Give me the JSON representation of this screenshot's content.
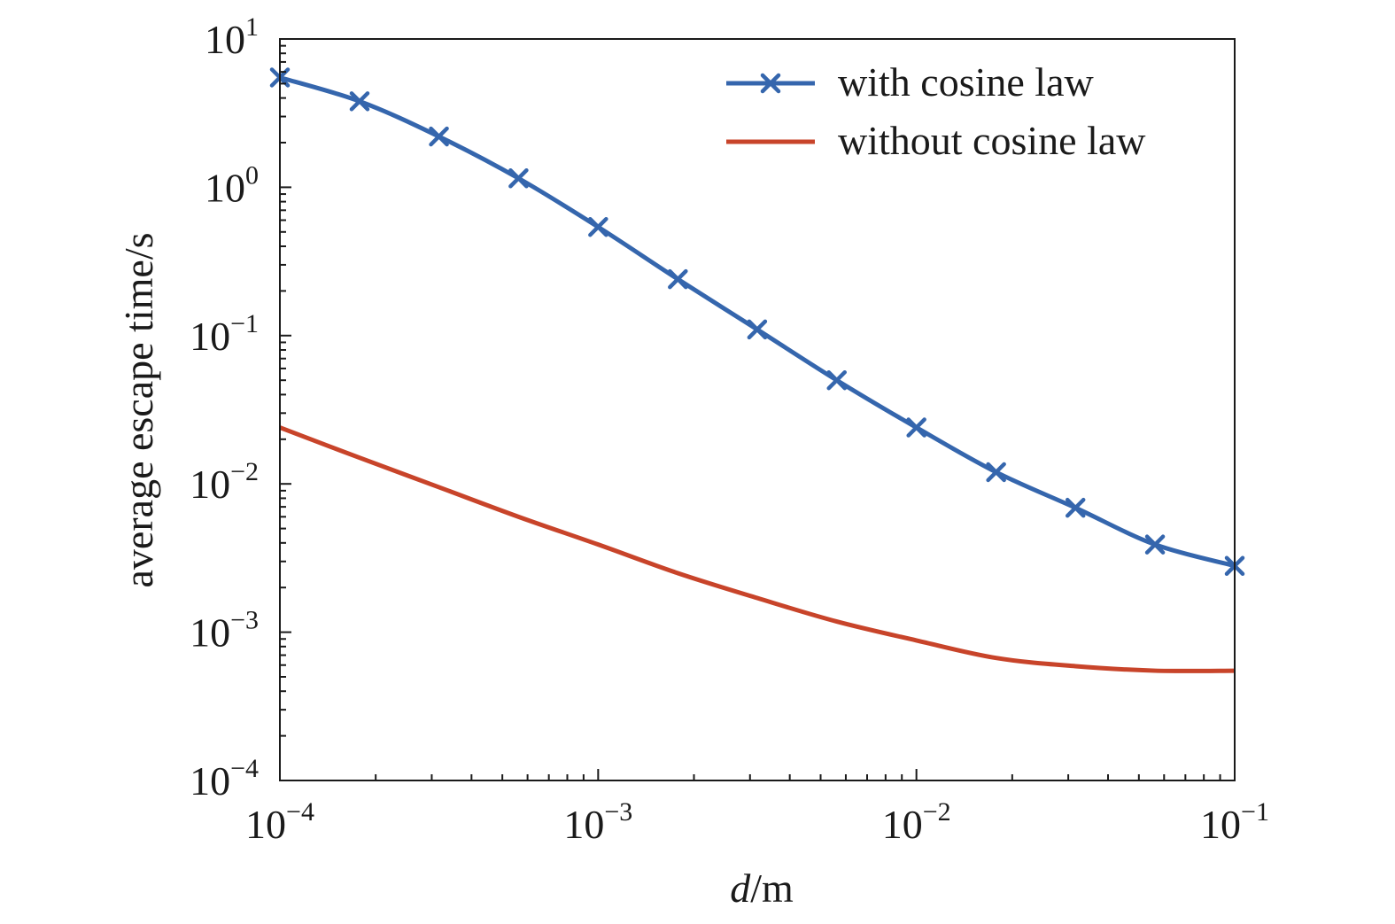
{
  "chart_data": {
    "type": "line",
    "xlabel_italic": "d",
    "xlabel_rest": "/m",
    "ylabel": "average escape time/s",
    "x_scale": "log",
    "y_scale": "log",
    "xlim": [
      0.0001,
      0.1
    ],
    "ylim": [
      0.0001,
      10
    ],
    "x_ticks": [
      {
        "value": 0.0001,
        "base": "10",
        "exp": "−4"
      },
      {
        "value": 0.001,
        "base": "10",
        "exp": "−3"
      },
      {
        "value": 0.01,
        "base": "10",
        "exp": "−2"
      },
      {
        "value": 0.1,
        "base": "10",
        "exp": "−1"
      }
    ],
    "y_ticks": [
      {
        "value": 0.0001,
        "base": "10",
        "exp": "−4"
      },
      {
        "value": 0.001,
        "base": "10",
        "exp": "−3"
      },
      {
        "value": 0.01,
        "base": "10",
        "exp": "−2"
      },
      {
        "value": 0.1,
        "base": "10",
        "exp": "−1"
      },
      {
        "value": 1,
        "base": "10",
        "exp": "0"
      },
      {
        "value": 10,
        "base": "10",
        "exp": "1"
      }
    ],
    "grid": false,
    "legend_position": "top-right",
    "series": [
      {
        "name": "with cosine law",
        "color": "#3566ad",
        "marker": "x",
        "x": [
          0.0001,
          0.000178,
          0.000316,
          0.000562,
          0.001,
          0.00178,
          0.00316,
          0.00562,
          0.01,
          0.0178,
          0.0316,
          0.0562,
          0.1
        ],
        "y": [
          5.5,
          3.8,
          2.2,
          1.15,
          0.54,
          0.24,
          0.11,
          0.05,
          0.024,
          0.012,
          0.0069,
          0.0039,
          0.0028
        ]
      },
      {
        "name": "without cosine law",
        "color": "#c8442a",
        "marker": "none",
        "x": [
          0.0001,
          0.000178,
          0.000316,
          0.000562,
          0.001,
          0.00178,
          0.00316,
          0.00562,
          0.01,
          0.0178,
          0.0316,
          0.0562,
          0.1
        ],
        "y": [
          0.024,
          0.015,
          0.0095,
          0.006,
          0.0039,
          0.0025,
          0.0017,
          0.00118,
          0.00088,
          0.00067,
          0.00059,
          0.00055,
          0.00055
        ]
      }
    ]
  }
}
